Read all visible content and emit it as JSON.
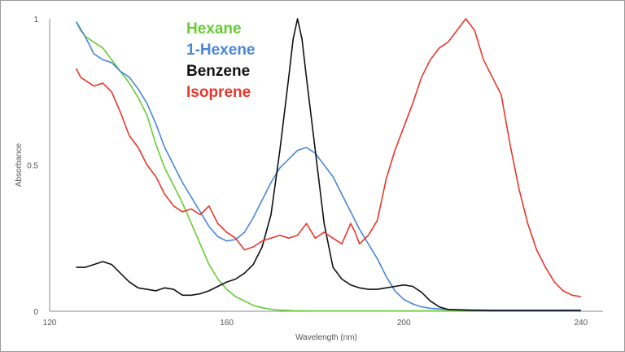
{
  "chart_data": {
    "type": "line",
    "title": "",
    "xlabel": "Wavelength (nm)",
    "ylabel": "Absorbance",
    "xlim": [
      120,
      245
    ],
    "ylim": [
      0,
      1
    ],
    "x_ticks": [
      {
        "value": 120,
        "label": "120"
      },
      {
        "value": 160,
        "label": "160"
      },
      {
        "value": 200,
        "label": "200"
      },
      {
        "value": 240,
        "label": "240"
      }
    ],
    "y_ticks": [
      {
        "value": 0,
        "label": "0"
      },
      {
        "value": 0.5,
        "label": "0.5"
      },
      {
        "value": 1,
        "label": "1"
      }
    ],
    "grid": false,
    "legend_position": "top-center",
    "series": [
      {
        "name": "Hexane",
        "color": "#66cc33",
        "points": [
          [
            126,
            0.99
          ],
          [
            127,
            0.96
          ],
          [
            128,
            0.94
          ],
          [
            130,
            0.92
          ],
          [
            132,
            0.9
          ],
          [
            134,
            0.86
          ],
          [
            136,
            0.82
          ],
          [
            138,
            0.78
          ],
          [
            140,
            0.73
          ],
          [
            142,
            0.67
          ],
          [
            144,
            0.57
          ],
          [
            146,
            0.49
          ],
          [
            148,
            0.43
          ],
          [
            150,
            0.37
          ],
          [
            152,
            0.3
          ],
          [
            154,
            0.23
          ],
          [
            156,
            0.16
          ],
          [
            158,
            0.11
          ],
          [
            160,
            0.075
          ],
          [
            162,
            0.05
          ],
          [
            164,
            0.035
          ],
          [
            166,
            0.02
          ],
          [
            168,
            0.012
          ],
          [
            170,
            0.007
          ],
          [
            172,
            0.004
          ],
          [
            175,
            0.002
          ],
          [
            180,
            0.001
          ],
          [
            190,
            0.001
          ],
          [
            200,
            0.001
          ],
          [
            220,
            0.001
          ],
          [
            240,
            0.001
          ]
        ]
      },
      {
        "name": "1-Hexene",
        "color": "#4a86d6",
        "points": [
          [
            126,
            0.99
          ],
          [
            128,
            0.94
          ],
          [
            130,
            0.88
          ],
          [
            132,
            0.86
          ],
          [
            134,
            0.85
          ],
          [
            136,
            0.82
          ],
          [
            138,
            0.8
          ],
          [
            140,
            0.76
          ],
          [
            142,
            0.71
          ],
          [
            144,
            0.64
          ],
          [
            146,
            0.56
          ],
          [
            148,
            0.5
          ],
          [
            150,
            0.44
          ],
          [
            152,
            0.39
          ],
          [
            154,
            0.34
          ],
          [
            156,
            0.29
          ],
          [
            158,
            0.255
          ],
          [
            160,
            0.24
          ],
          [
            162,
            0.245
          ],
          [
            164,
            0.27
          ],
          [
            166,
            0.32
          ],
          [
            168,
            0.38
          ],
          [
            170,
            0.44
          ],
          [
            172,
            0.49
          ],
          [
            174,
            0.52
          ],
          [
            176,
            0.55
          ],
          [
            178,
            0.56
          ],
          [
            180,
            0.54
          ],
          [
            182,
            0.5
          ],
          [
            184,
            0.46
          ],
          [
            186,
            0.4
          ],
          [
            188,
            0.34
          ],
          [
            190,
            0.28
          ],
          [
            192,
            0.23
          ],
          [
            194,
            0.18
          ],
          [
            196,
            0.12
          ],
          [
            198,
            0.07
          ],
          [
            200,
            0.04
          ],
          [
            202,
            0.025
          ],
          [
            204,
            0.015
          ],
          [
            206,
            0.01
          ],
          [
            210,
            0.006
          ],
          [
            220,
            0.004
          ],
          [
            240,
            0.004
          ]
        ]
      },
      {
        "name": "Benzene",
        "color": "#111111",
        "points": [
          [
            126,
            0.15
          ],
          [
            128,
            0.15
          ],
          [
            130,
            0.16
          ],
          [
            132,
            0.17
          ],
          [
            134,
            0.16
          ],
          [
            136,
            0.13
          ],
          [
            138,
            0.1
          ],
          [
            140,
            0.08
          ],
          [
            142,
            0.075
          ],
          [
            144,
            0.07
          ],
          [
            146,
            0.08
          ],
          [
            148,
            0.075
          ],
          [
            150,
            0.055
          ],
          [
            152,
            0.055
          ],
          [
            154,
            0.06
          ],
          [
            156,
            0.07
          ],
          [
            158,
            0.085
          ],
          [
            160,
            0.1
          ],
          [
            162,
            0.11
          ],
          [
            164,
            0.13
          ],
          [
            166,
            0.16
          ],
          [
            168,
            0.22
          ],
          [
            170,
            0.33
          ],
          [
            172,
            0.55
          ],
          [
            174,
            0.8
          ],
          [
            175,
            0.93
          ],
          [
            176,
            1.0
          ],
          [
            177,
            0.93
          ],
          [
            178,
            0.8
          ],
          [
            180,
            0.55
          ],
          [
            182,
            0.3
          ],
          [
            184,
            0.15
          ],
          [
            186,
            0.11
          ],
          [
            188,
            0.09
          ],
          [
            190,
            0.08
          ],
          [
            192,
            0.075
          ],
          [
            194,
            0.075
          ],
          [
            196,
            0.08
          ],
          [
            198,
            0.085
          ],
          [
            200,
            0.09
          ],
          [
            202,
            0.085
          ],
          [
            204,
            0.065
          ],
          [
            206,
            0.035
          ],
          [
            208,
            0.015
          ],
          [
            210,
            0.006
          ],
          [
            215,
            0.003
          ],
          [
            220,
            0.002
          ],
          [
            240,
            0.002
          ]
        ]
      },
      {
        "name": "Isoprene",
        "color": "#e8362a",
        "points": [
          [
            126,
            0.83
          ],
          [
            127,
            0.8
          ],
          [
            128,
            0.79
          ],
          [
            130,
            0.77
          ],
          [
            132,
            0.78
          ],
          [
            134,
            0.75
          ],
          [
            136,
            0.68
          ],
          [
            138,
            0.6
          ],
          [
            140,
            0.56
          ],
          [
            142,
            0.5
          ],
          [
            144,
            0.46
          ],
          [
            146,
            0.4
          ],
          [
            148,
            0.36
          ],
          [
            150,
            0.34
          ],
          [
            152,
            0.35
          ],
          [
            154,
            0.33
          ],
          [
            156,
            0.36
          ],
          [
            158,
            0.3
          ],
          [
            160,
            0.27
          ],
          [
            162,
            0.25
          ],
          [
            164,
            0.21
          ],
          [
            166,
            0.22
          ],
          [
            168,
            0.24
          ],
          [
            170,
            0.25
          ],
          [
            172,
            0.26
          ],
          [
            174,
            0.25
          ],
          [
            176,
            0.26
          ],
          [
            178,
            0.3
          ],
          [
            180,
            0.25
          ],
          [
            182,
            0.27
          ],
          [
            184,
            0.25
          ],
          [
            186,
            0.23
          ],
          [
            188,
            0.3
          ],
          [
            189,
            0.27
          ],
          [
            190,
            0.23
          ],
          [
            192,
            0.26
          ],
          [
            194,
            0.31
          ],
          [
            196,
            0.45
          ],
          [
            198,
            0.55
          ],
          [
            200,
            0.63
          ],
          [
            202,
            0.71
          ],
          [
            204,
            0.8
          ],
          [
            206,
            0.86
          ],
          [
            208,
            0.9
          ],
          [
            210,
            0.92
          ],
          [
            212,
            0.96
          ],
          [
            214,
            1.0
          ],
          [
            216,
            0.96
          ],
          [
            218,
            0.86
          ],
          [
            220,
            0.8
          ],
          [
            222,
            0.74
          ],
          [
            224,
            0.57
          ],
          [
            226,
            0.42
          ],
          [
            228,
            0.3
          ],
          [
            230,
            0.21
          ],
          [
            232,
            0.15
          ],
          [
            234,
            0.1
          ],
          [
            236,
            0.07
          ],
          [
            238,
            0.055
          ],
          [
            240,
            0.05
          ]
        ]
      }
    ]
  }
}
